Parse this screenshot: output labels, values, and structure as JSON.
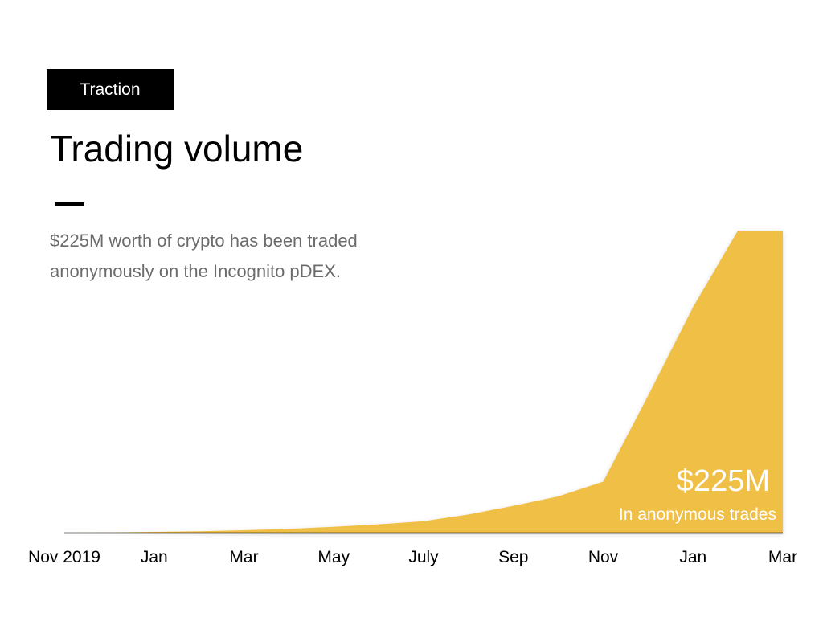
{
  "tag_label": "Traction",
  "title": "Trading volume",
  "description": "$225M worth of crypto has been traded anonymously on the Incognito pDEX.",
  "callout": {
    "value": "$225M",
    "caption": "In anonymous trades"
  },
  "colors": {
    "area": "#f0bf45",
    "axis": "#000000",
    "tag_bg": "#000000",
    "description": "#6b6b6b"
  },
  "chart_data": {
    "type": "area",
    "title": "Trading volume",
    "xlabel": "",
    "ylabel": "",
    "unit": "$M",
    "grid": false,
    "tick_labels": [
      "Nov 2019",
      "Jan",
      "Mar",
      "May",
      "July",
      "Sep",
      "Nov",
      "Jan",
      "Mar"
    ],
    "x": [
      0,
      1,
      2,
      3,
      4,
      5,
      6,
      7,
      8,
      9,
      10,
      11,
      12,
      13,
      14,
      15,
      16
    ],
    "y": [
      0,
      0.2,
      0.6,
      1.1,
      1.8,
      2.9,
      4.3,
      6.2,
      8.5,
      13.5,
      20,
      27,
      38,
      102,
      168,
      225,
      225
    ],
    "ylim": [
      0,
      225
    ]
  }
}
